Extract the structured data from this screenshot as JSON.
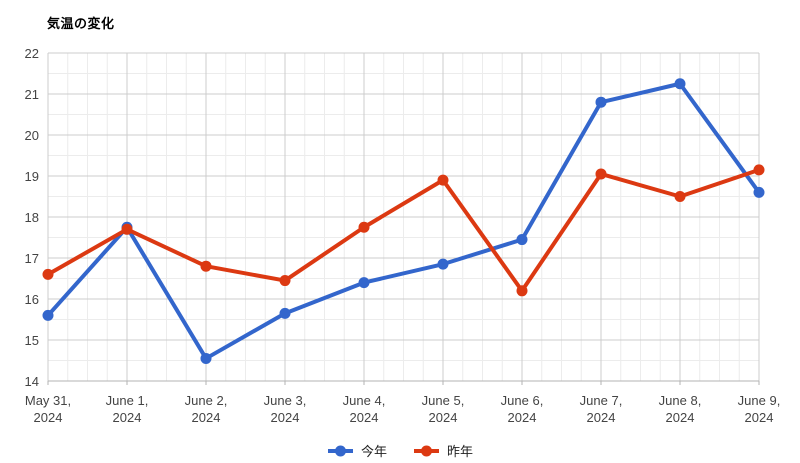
{
  "title": "気温の変化",
  "chart_data": {
    "type": "line",
    "title": "気温の変化",
    "categories": [
      "May 31, 2024",
      "June 1, 2024",
      "June 2, 2024",
      "June 3, 2024",
      "June 4, 2024",
      "June 5, 2024",
      "June 6, 2024",
      "June 7, 2024",
      "June 8, 2024",
      "June 9, 2024"
    ],
    "series": [
      {
        "name": "今年",
        "color": "#3366CC",
        "values": [
          15.6,
          17.75,
          14.55,
          15.65,
          16.4,
          16.85,
          17.45,
          20.8,
          21.25,
          18.6
        ]
      },
      {
        "name": "昨年",
        "color": "#DC3912",
        "values": [
          16.6,
          17.7,
          16.8,
          16.45,
          17.75,
          18.9,
          16.2,
          19.05,
          18.5,
          19.15
        ]
      }
    ],
    "ylim": [
      14,
      22
    ],
    "y_ticks": [
      14,
      15,
      16,
      17,
      18,
      19,
      20,
      21,
      22
    ],
    "y_minor_step": 0.5,
    "x_minor_divisions": 4,
    "grid": true,
    "legend_position": "bottom",
    "xlabel": "",
    "ylabel": ""
  },
  "colors": {
    "grid_major": "#cccccc",
    "grid_minor": "#ececec",
    "axis_line": "#b3b3b3",
    "axis_text": "#444444",
    "title_text": "#000000",
    "legend_text": "#222222",
    "background": "#ffffff"
  }
}
